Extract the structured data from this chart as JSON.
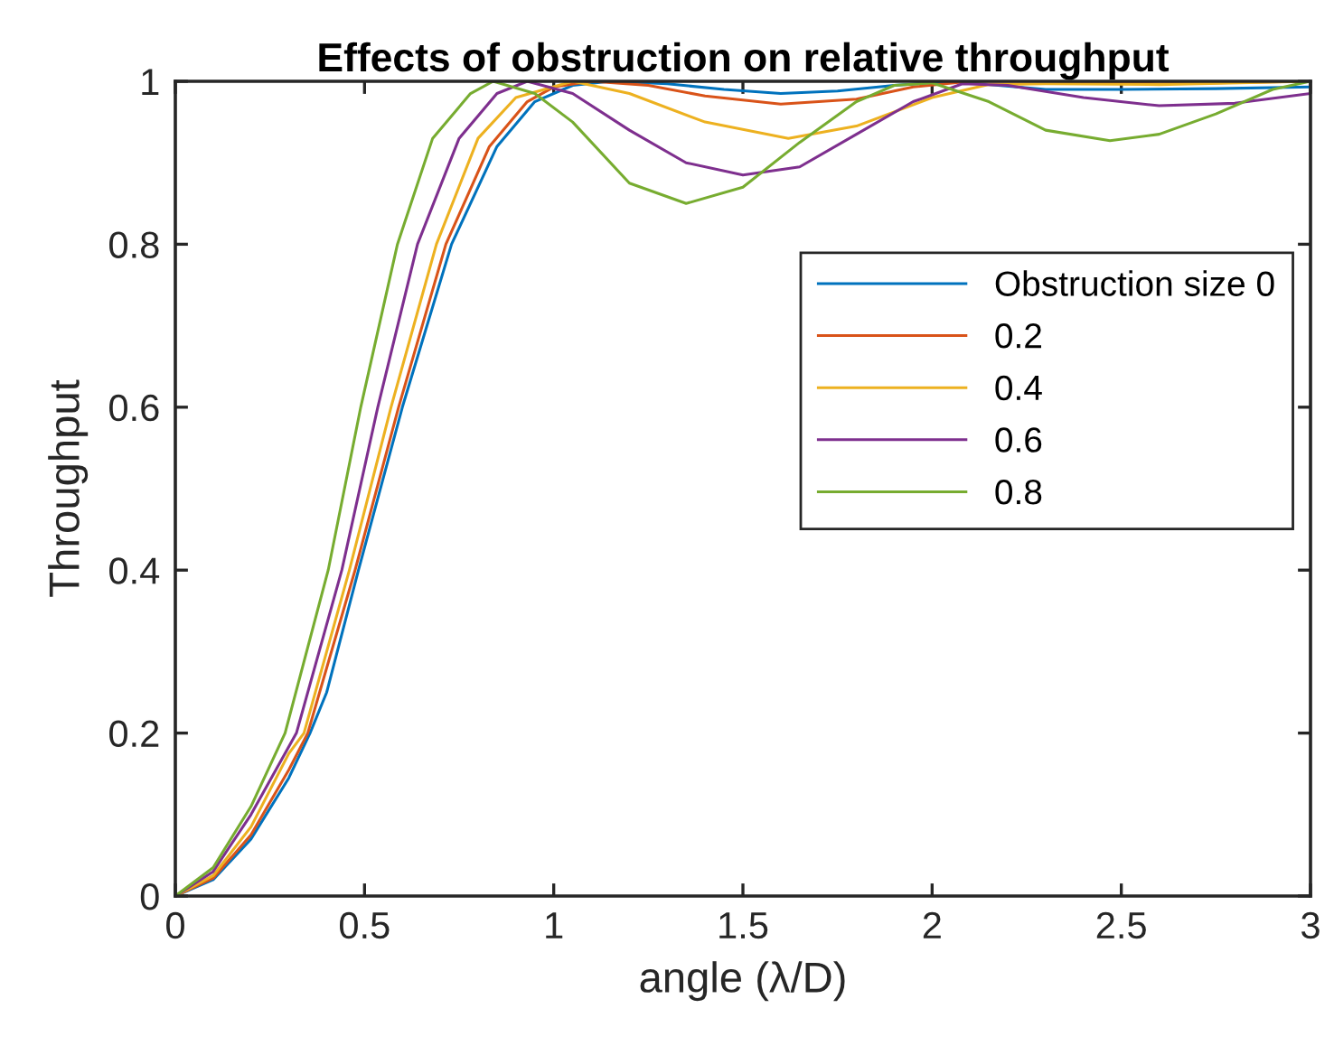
{
  "chart_data": {
    "type": "line",
    "title": "Effects of obstruction on relative throughput",
    "xlabel": "angle (λ/D)",
    "ylabel": "Throughput",
    "xlim": [
      0,
      3
    ],
    "ylim": [
      0,
      1
    ],
    "xticks": [
      0,
      0.5,
      1,
      1.5,
      2,
      2.5,
      3
    ],
    "yticks": [
      0,
      0.2,
      0.4,
      0.6,
      0.8,
      1
    ],
    "grid": false,
    "legend": "right",
    "marker": "none",
    "line_style": "solid",
    "series": [
      {
        "name": "Obstruction size 0",
        "color": "#0072bd",
        "x": [
          0,
          0.1,
          0.2,
          0.3,
          0.356,
          0.4,
          0.484,
          0.6,
          0.73,
          0.85,
          0.95,
          1.05,
          1.15,
          1.3,
          1.45,
          1.6,
          1.75,
          1.9,
          2.05,
          2.3,
          2.5,
          2.75,
          3
        ],
        "values": [
          0,
          0.02,
          0.07,
          0.145,
          0.2,
          0.25,
          0.4,
          0.6,
          0.8,
          0.92,
          0.975,
          0.995,
          1.0,
          0.997,
          0.99,
          0.985,
          0.988,
          0.995,
          1.0,
          0.99,
          0.99,
          0.991,
          0.993
        ]
      },
      {
        "name": "0.2",
        "color": "#d95319",
        "x": [
          0,
          0.1,
          0.2,
          0.3,
          0.35,
          0.475,
          0.59,
          0.715,
          0.83,
          0.93,
          1.0,
          1.1,
          1.25,
          1.4,
          1.6,
          1.8,
          1.95,
          2.1,
          2.3,
          2.6,
          3
        ],
        "values": [
          0,
          0.022,
          0.075,
          0.155,
          0.2,
          0.4,
          0.6,
          0.8,
          0.92,
          0.975,
          0.993,
          1.0,
          0.995,
          0.982,
          0.972,
          0.978,
          0.993,
          1.0,
          1.0,
          0.997,
          1.0
        ]
      },
      {
        "name": "0.4",
        "color": "#edb120",
        "x": [
          0,
          0.1,
          0.2,
          0.3,
          0.34,
          0.46,
          0.57,
          0.69,
          0.8,
          0.9,
          1.05,
          1.2,
          1.4,
          1.62,
          1.8,
          2.0,
          2.15,
          2.3,
          2.6,
          3
        ],
        "values": [
          0,
          0.025,
          0.085,
          0.175,
          0.2,
          0.4,
          0.6,
          0.8,
          0.93,
          0.98,
          1.0,
          0.985,
          0.95,
          0.93,
          0.945,
          0.98,
          0.996,
          0.997,
          0.996,
          1.0
        ]
      },
      {
        "name": "0.6",
        "color": "#7e2f8e",
        "x": [
          0,
          0.1,
          0.2,
          0.32,
          0.44,
          0.535,
          0.64,
          0.75,
          0.85,
          0.93,
          1.05,
          1.2,
          1.35,
          1.5,
          1.65,
          1.8,
          1.95,
          2.08,
          2.2,
          2.4,
          2.6,
          2.8,
          3
        ],
        "values": [
          0,
          0.03,
          0.1,
          0.2,
          0.4,
          0.6,
          0.8,
          0.93,
          0.985,
          1.0,
          0.985,
          0.94,
          0.9,
          0.885,
          0.895,
          0.935,
          0.975,
          0.997,
          0.995,
          0.98,
          0.97,
          0.973,
          0.985
        ]
      },
      {
        "name": "0.8",
        "color": "#77ac30",
        "x": [
          0,
          0.1,
          0.2,
          0.29,
          0.404,
          0.49,
          0.587,
          0.68,
          0.78,
          0.84,
          0.95,
          1.05,
          1.2,
          1.35,
          1.5,
          1.65,
          1.8,
          1.9,
          2.0,
          2.15,
          2.3,
          2.47,
          2.6,
          2.75,
          2.9,
          3
        ],
        "values": [
          0,
          0.035,
          0.11,
          0.2,
          0.4,
          0.6,
          0.8,
          0.93,
          0.985,
          1.0,
          0.985,
          0.95,
          0.875,
          0.85,
          0.87,
          0.925,
          0.975,
          0.995,
          0.998,
          0.975,
          0.94,
          0.927,
          0.935,
          0.96,
          0.99,
          1.0
        ]
      }
    ]
  }
}
